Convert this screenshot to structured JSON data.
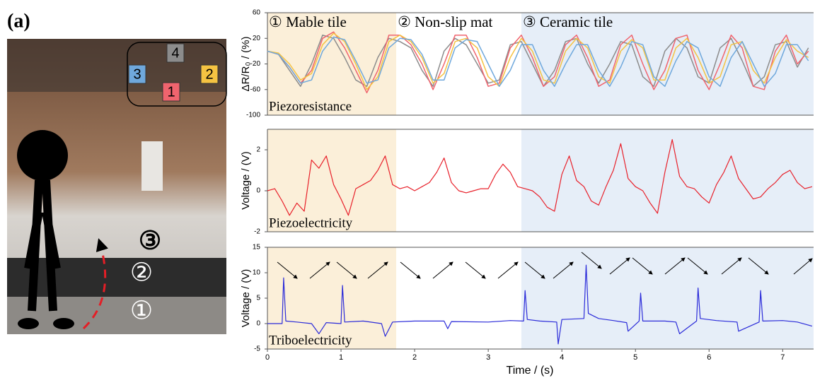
{
  "figure_label": "(a)",
  "photo": {
    "steps": [
      "③",
      "②",
      "①"
    ]
  },
  "chart_data": [
    {
      "type": "line",
      "ylabel": "ΔR/R₀ / (%)",
      "annotation": "Piezoresistance",
      "regions": [
        {
          "label": "① Mable tile",
          "start": 0,
          "end": 1.75,
          "color": "#fbefd9"
        },
        {
          "label": "② Non-slip mat",
          "start": 1.75,
          "end": 3.45,
          "color": "#ffffff"
        },
        {
          "label": "③ Ceramic tile",
          "start": 3.45,
          "end": 7.42,
          "color": "#e6eef8"
        }
      ],
      "xlim": [
        0,
        7.42
      ],
      "ylim": [
        -100,
        60
      ],
      "yticks": [
        -100,
        -60,
        -20,
        20,
        60
      ],
      "x": [
        0,
        0.15,
        0.3,
        0.45,
        0.6,
        0.75,
        0.9,
        1.05,
        1.2,
        1.35,
        1.5,
        1.65,
        1.8,
        1.95,
        2.1,
        2.25,
        2.4,
        2.55,
        2.7,
        2.85,
        3.0,
        3.15,
        3.3,
        3.45,
        3.6,
        3.75,
        3.9,
        4.05,
        4.2,
        4.35,
        4.5,
        4.65,
        4.8,
        4.95,
        5.1,
        5.25,
        5.4,
        5.55,
        5.7,
        5.85,
        6.0,
        6.15,
        6.3,
        6.45,
        6.6,
        6.75,
        6.9,
        7.05,
        7.2,
        7.35
      ],
      "series": [
        {
          "name": "4",
          "color": "#8c8c8c",
          "values": [
            0,
            -5,
            -30,
            -55,
            -20,
            25,
            20,
            -10,
            -45,
            -55,
            -10,
            20,
            15,
            5,
            -30,
            -55,
            0,
            20,
            10,
            -20,
            -50,
            -45,
            10,
            15,
            -20,
            -55,
            -30,
            15,
            20,
            -20,
            -50,
            -20,
            15,
            10,
            -40,
            -55,
            0,
            20,
            5,
            -40,
            -50,
            5,
            20,
            -15,
            -55,
            -40,
            10,
            15,
            -25,
            5
          ]
        },
        {
          "name": "1",
          "color": "#f0646e",
          "values": [
            0,
            -5,
            -25,
            -50,
            -30,
            20,
            30,
            5,
            -30,
            -65,
            -30,
            25,
            25,
            10,
            -20,
            -60,
            -20,
            25,
            25,
            -10,
            -55,
            -50,
            5,
            25,
            -10,
            -55,
            -40,
            10,
            25,
            -10,
            -55,
            -45,
            10,
            25,
            -20,
            -60,
            -30,
            20,
            25,
            -30,
            -60,
            -20,
            25,
            5,
            -55,
            -60,
            0,
            25,
            -20,
            0
          ]
        },
        {
          "name": "2",
          "color": "#f5c342",
          "values": [
            0,
            -3,
            -20,
            -45,
            -35,
            10,
            28,
            15,
            -20,
            -60,
            -40,
            15,
            25,
            15,
            -10,
            -50,
            -35,
            15,
            20,
            5,
            -40,
            -55,
            -10,
            20,
            0,
            -45,
            -50,
            0,
            20,
            5,
            -40,
            -50,
            0,
            18,
            5,
            -45,
            -45,
            5,
            20,
            -10,
            -50,
            -40,
            10,
            15,
            -30,
            -50,
            -10,
            18,
            0,
            -10
          ]
        },
        {
          "name": "3",
          "color": "#6fa8dc",
          "values": [
            0,
            -5,
            -25,
            -50,
            -45,
            0,
            22,
            18,
            -15,
            -50,
            -45,
            5,
            20,
            18,
            -5,
            -45,
            -45,
            5,
            18,
            15,
            -20,
            -55,
            -30,
            10,
            10,
            -30,
            -55,
            -20,
            10,
            10,
            -30,
            -55,
            -25,
            15,
            10,
            -40,
            -55,
            -15,
            15,
            5,
            -40,
            -55,
            -10,
            15,
            -20,
            -55,
            -35,
            10,
            10,
            -15
          ]
        }
      ]
    },
    {
      "type": "line",
      "ylabel": "Voltage / (V)",
      "annotation": "Piezoelectricity",
      "xlim": [
        0,
        7.42
      ],
      "ylim": [
        -2,
        3
      ],
      "yticks": [
        -2,
        0,
        2
      ],
      "x": [
        0,
        0.1,
        0.2,
        0.3,
        0.4,
        0.5,
        0.6,
        0.7,
        0.8,
        0.9,
        1.0,
        1.1,
        1.2,
        1.3,
        1.4,
        1.5,
        1.6,
        1.7,
        1.8,
        1.9,
        2.0,
        2.1,
        2.2,
        2.3,
        2.4,
        2.5,
        2.6,
        2.7,
        2.8,
        2.9,
        3.0,
        3.1,
        3.2,
        3.3,
        3.4,
        3.5,
        3.6,
        3.7,
        3.8,
        3.9,
        4.0,
        4.1,
        4.2,
        4.3,
        4.4,
        4.5,
        4.6,
        4.7,
        4.8,
        4.9,
        5.0,
        5.1,
        5.2,
        5.3,
        5.4,
        5.5,
        5.6,
        5.7,
        5.8,
        5.9,
        6.0,
        6.1,
        6.2,
        6.3,
        6.4,
        6.5,
        6.6,
        6.7,
        6.8,
        6.9,
        7.0,
        7.1,
        7.2,
        7.3,
        7.4
      ],
      "series": [
        {
          "color": "#e8202a",
          "values": [
            0,
            0.1,
            -0.5,
            -1.2,
            -0.6,
            -1.0,
            1.5,
            1.1,
            1.7,
            0.3,
            -0.4,
            -1.2,
            0.1,
            0.3,
            0.5,
            1.0,
            1.7,
            0.3,
            0.1,
            0.2,
            0.0,
            0.2,
            0.4,
            0.9,
            1.6,
            0.4,
            0.0,
            -0.1,
            0.0,
            0.1,
            0.1,
            0.8,
            1.3,
            0.9,
            0.2,
            0.1,
            0.0,
            -0.3,
            -0.8,
            -1.0,
            0.8,
            1.7,
            0.5,
            0.2,
            -0.5,
            -0.7,
            0.2,
            1.0,
            2.3,
            0.6,
            0.2,
            0.0,
            -0.6,
            -1.1,
            0.9,
            2.5,
            0.7,
            0.2,
            0.1,
            -0.3,
            -0.6,
            0.3,
            0.9,
            1.7,
            0.6,
            0.1,
            -0.4,
            -0.3,
            0.1,
            0.4,
            0.8,
            1.0,
            0.4,
            0.1,
            0.2
          ]
        }
      ]
    },
    {
      "type": "line",
      "ylabel": "Voltage / (V)",
      "annotation": "Triboelectricity",
      "xlabel": "Time / (s)",
      "xlim": [
        0,
        7.42
      ],
      "xticks": [
        0,
        1,
        2,
        3,
        4,
        5,
        6,
        7
      ],
      "ylim": [
        -5,
        15
      ],
      "yticks": [
        -5,
        0,
        5,
        10,
        15
      ],
      "x": [
        0,
        0.2,
        0.22,
        0.25,
        0.4,
        0.6,
        0.7,
        0.8,
        1.0,
        1.02,
        1.05,
        1.3,
        1.55,
        1.6,
        1.7,
        2.0,
        2.4,
        2.45,
        2.5,
        3.0,
        3.3,
        3.48,
        3.5,
        3.53,
        3.7,
        3.93,
        3.95,
        4.0,
        4.3,
        4.33,
        4.36,
        4.5,
        4.7,
        4.88,
        4.9,
        5.05,
        5.07,
        5.1,
        5.4,
        5.55,
        5.6,
        5.83,
        5.85,
        5.88,
        6.1,
        6.38,
        6.4,
        6.68,
        6.7,
        6.73,
        7.0,
        7.2,
        7.4
      ],
      "series": [
        {
          "color": "#2b2bd9",
          "values": [
            0,
            0,
            9,
            0.5,
            0.3,
            0,
            -2,
            0.2,
            0,
            7.5,
            0.3,
            0.5,
            0,
            -2.5,
            0.3,
            0.5,
            0.5,
            -1,
            0.4,
            0.3,
            0.6,
            0.5,
            6.5,
            0.8,
            0.5,
            0.3,
            -4,
            0.8,
            1,
            11.5,
            2,
            1,
            0.6,
            0.2,
            -1.5,
            0.5,
            6,
            0.5,
            0.5,
            0.3,
            -2,
            0.5,
            7,
            1,
            0.6,
            0.3,
            -1.5,
            0.3,
            6.5,
            0.5,
            0.6,
            0.3,
            -0.5
          ]
        }
      ]
    }
  ]
}
